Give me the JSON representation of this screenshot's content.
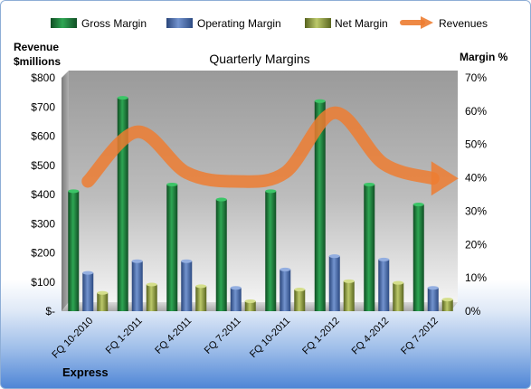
{
  "chart_data": {
    "type": "bar",
    "title": "Quarterly Margins",
    "categories": [
      "FQ 10-2010",
      "FQ 1-2011",
      "FQ 4-2011",
      "FQ 7-2011",
      "FQ 10-2011",
      "FQ 1-2012",
      "FQ 4-2012",
      "FQ 7-2012"
    ],
    "series": [
      {
        "name": "Gross Margin",
        "axis": "right",
        "unit": "%",
        "color": "#1e7a3c",
        "values": [
          36,
          64,
          38,
          33.5,
          36,
          63,
          38,
          32
        ]
      },
      {
        "name": "Operating Margin",
        "axis": "right",
        "unit": "%",
        "color": "#4a6fae",
        "values": [
          11.5,
          15,
          15,
          7,
          12.5,
          16.5,
          15.5,
          7
        ]
      },
      {
        "name": "Net Margin",
        "axis": "right",
        "unit": "%",
        "color": "#8a9a3c",
        "values": [
          5.5,
          8,
          7.5,
          3,
          6.5,
          9,
          8.5,
          3.5
        ]
      },
      {
        "name": "Revenues",
        "axis": "left",
        "unit": "$millions",
        "type": "line",
        "color": "#ed7d31",
        "values": [
          445,
          615,
          475,
          445,
          475,
          680,
          505,
          455
        ]
      }
    ],
    "left_axis": {
      "label_line1": "Revenue",
      "label_line2": "$millions",
      "min": 0,
      "max": 800,
      "ticks": [
        "$-",
        "$100",
        "$200",
        "$300",
        "$400",
        "$500",
        "$600",
        "$700",
        "$800"
      ]
    },
    "right_axis": {
      "label": "Margin %",
      "min": 0,
      "max": 70,
      "ticks": [
        "0%",
        "10%",
        "20%",
        "30%",
        "40%",
        "50%",
        "60%",
        "70%"
      ]
    },
    "legend_position": "top",
    "grid": false,
    "footer": "Express"
  }
}
